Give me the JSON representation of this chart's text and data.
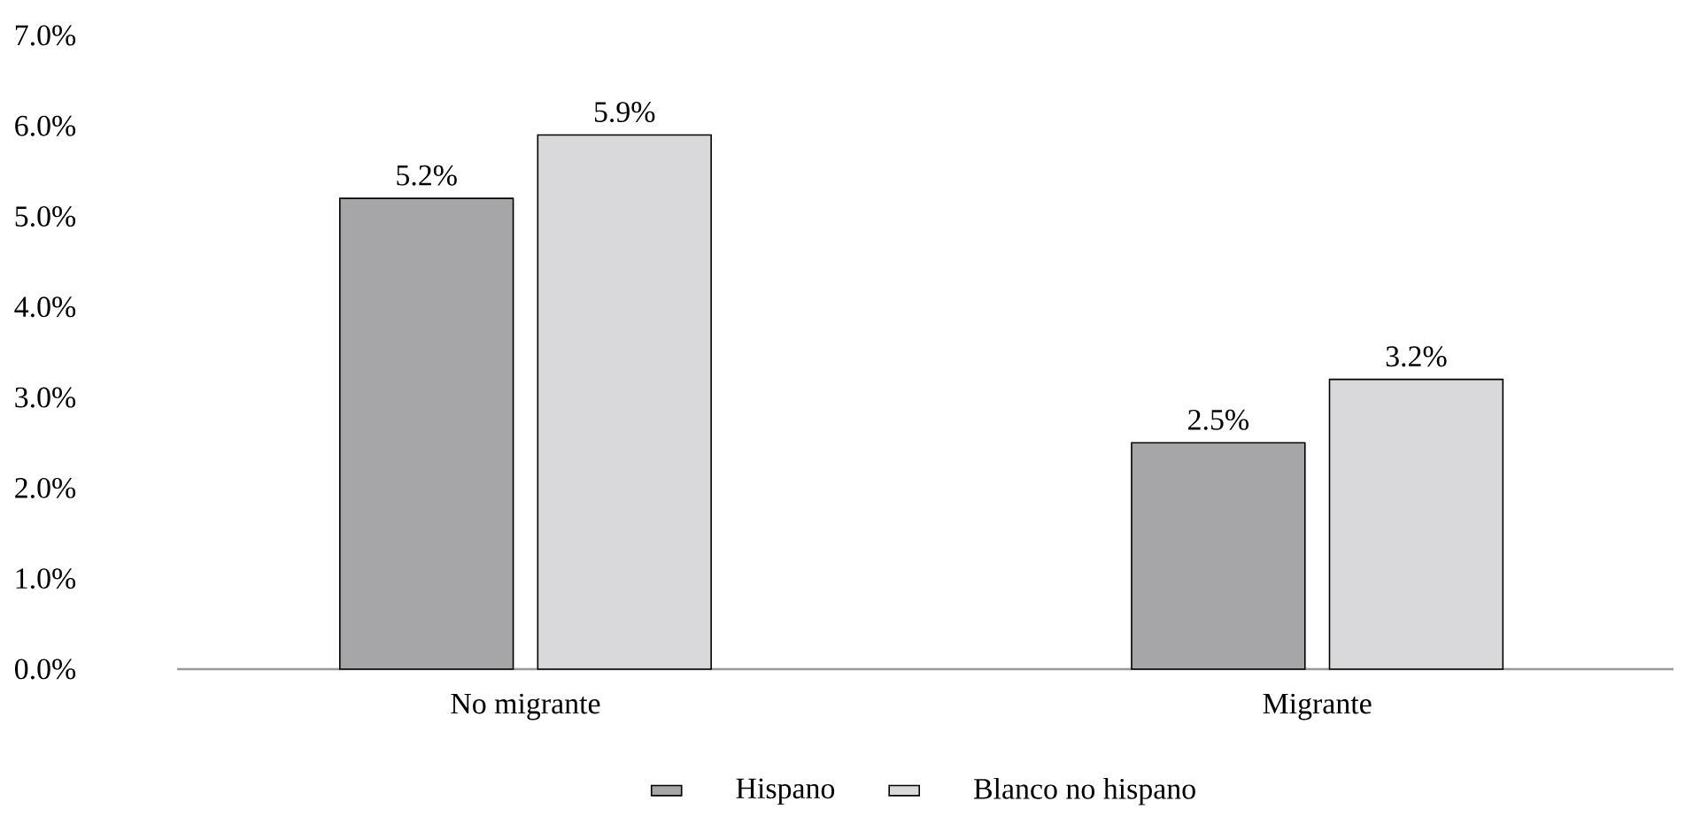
{
  "chart_data": {
    "type": "bar",
    "categories": [
      "No migrante",
      "Migrante"
    ],
    "series": [
      {
        "name": "Hispano",
        "color": "#a6a6a8",
        "values": [
          5.2,
          2.5
        ],
        "value_labels": [
          "5.2%",
          "2.5%"
        ]
      },
      {
        "name": "Blanco no hispano",
        "color": "#d9d9db",
        "values": [
          5.9,
          3.2
        ],
        "value_labels": [
          "5.9%",
          "3.2%"
        ]
      }
    ],
    "ylim": [
      0,
      7
    ],
    "yticks": [
      {
        "value": 0,
        "label": "0.0%"
      },
      {
        "value": 1,
        "label": "1.0%"
      },
      {
        "value": 2,
        "label": "2.0%"
      },
      {
        "value": 3,
        "label": "3.0%"
      },
      {
        "value": 4,
        "label": "4.0%"
      },
      {
        "value": 5,
        "label": "5.0%"
      },
      {
        "value": 6,
        "label": "6.0%"
      },
      {
        "value": 7,
        "label": "7.0%"
      }
    ],
    "legend": "bottom"
  }
}
